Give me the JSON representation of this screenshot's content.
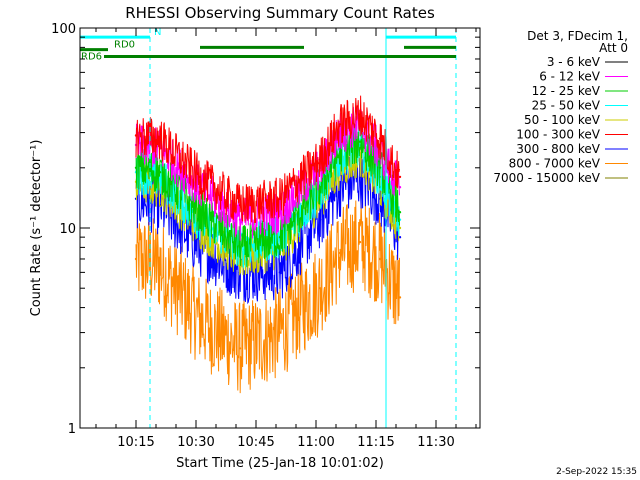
{
  "chart_data": {
    "type": "line",
    "title": "RHESSI Observing Summary Count Rates",
    "xlabel": "Start Time (25-Jan-18 10:01:02)",
    "ylabel": "Count Rate (s⁻¹ detector⁻¹)",
    "y_scale": "log",
    "xlim": [
      0,
      100
    ],
    "ylim": [
      1,
      100
    ],
    "x_units": "minutes after 10:01:02",
    "x_ticks": [
      {
        "pos": 14,
        "label": "10:15"
      },
      {
        "pos": 29,
        "label": "10:30"
      },
      {
        "pos": 44,
        "label": "10:45"
      },
      {
        "pos": 59,
        "label": "11:00"
      },
      {
        "pos": 74,
        "label": "11:15"
      },
      {
        "pos": 89,
        "label": "11:30"
      }
    ],
    "y_ticks": [
      {
        "value": 1,
        "label": "1"
      },
      {
        "value": 10,
        "label": "10"
      },
      {
        "value": 100,
        "label": "100"
      }
    ],
    "legend_header": [
      "Det 3, FDecim 1,",
      "Att 0"
    ],
    "legend_position": "right",
    "series": [
      {
        "name": "3 - 6 keV",
        "color": "#000000",
        "x": [
          14,
          20,
          30,
          40,
          50,
          60,
          65,
          70,
          75,
          80
        ],
        "values": [
          0,
          0,
          0,
          0,
          0,
          0,
          0,
          0,
          0,
          0
        ]
      },
      {
        "name": "6 - 12 keV",
        "color": "#ff00ff",
        "x": [
          14,
          20,
          30,
          40,
          50,
          60,
          65,
          70,
          75,
          80
        ],
        "values": [
          26,
          25,
          16,
          11,
          12,
          20,
          30,
          33,
          24,
          16
        ]
      },
      {
        "name": "12 - 25 keV",
        "color": "#00cc00",
        "x": [
          14,
          20,
          30,
          40,
          50,
          60,
          65,
          70,
          75,
          80
        ],
        "values": [
          20,
          19,
          12,
          8,
          9,
          16,
          24,
          27,
          20,
          12
        ]
      },
      {
        "name": "25 - 50 keV",
        "color": "#00ffff",
        "x": [
          14,
          20,
          30,
          40,
          50,
          60,
          65,
          70,
          75,
          80
        ],
        "values": [
          19,
          18,
          11,
          8,
          9,
          15,
          23,
          26,
          18,
          11
        ]
      },
      {
        "name": "50 - 100 keV",
        "color": "#cccc00",
        "x": [
          14,
          20,
          30,
          40,
          50,
          60,
          65,
          70,
          75,
          80
        ],
        "values": [
          17,
          16,
          10,
          7,
          8,
          14,
          20,
          23,
          16,
          10
        ]
      },
      {
        "name": "100 - 300 keV",
        "color": "#ff0000",
        "x": [
          14,
          20,
          30,
          40,
          50,
          60,
          65,
          70,
          75,
          80
        ],
        "values": [
          29,
          28,
          18,
          13,
          14,
          22,
          33,
          37,
          28,
          18
        ]
      },
      {
        "name": "300 - 800 keV",
        "color": "#0000ff",
        "x": [
          14,
          20,
          30,
          40,
          50,
          60,
          65,
          70,
          75,
          80
        ],
        "values": [
          14,
          13,
          8,
          6,
          6,
          11,
          16,
          18,
          14,
          9
        ]
      },
      {
        "name": "800 - 7000 keV",
        "color": "#ff8800",
        "x": [
          14,
          20,
          30,
          40,
          50,
          60,
          65,
          70,
          75,
          80
        ],
        "values": [
          7,
          6.5,
          3.5,
          2.5,
          3,
          5,
          7.5,
          8.5,
          7,
          4.5
        ]
      },
      {
        "name": "7000 - 15000 keV",
        "color": "#808000",
        "x": [
          14,
          20,
          30,
          40,
          50,
          60,
          65,
          70,
          75,
          80
        ],
        "values": [
          0,
          0,
          0,
          0,
          0,
          0,
          0,
          0,
          0,
          0
        ]
      }
    ],
    "annotations": [
      {
        "label": "N",
        "color": "#00ffff",
        "segments": [
          [
            0,
            17.5
          ],
          [
            76.5,
            94
          ]
        ],
        "level": 90
      },
      {
        "label": "RD0",
        "color": "#008000",
        "segments": [
          [
            0,
            7
          ]
        ],
        "level": 78
      },
      {
        "label": "RD6",
        "color": "#008000",
        "segments": [
          [
            6,
            30
          ],
          [
            30,
            56
          ],
          [
            56,
            81
          ],
          [
            81,
            94
          ]
        ],
        "level": 72
      },
      {
        "label": "",
        "color": "#008000",
        "segments": [
          [
            30,
            56
          ],
          [
            81,
            94
          ]
        ],
        "level": 80
      }
    ],
    "vlines": [
      {
        "x": 17.5,
        "color": "#00ffff",
        "style": "dashed"
      },
      {
        "x": 76.5,
        "color": "#00ffff",
        "style": "solid"
      },
      {
        "x": 94,
        "color": "#00ffff",
        "style": "dashed"
      }
    ],
    "date_stamp": "2-Sep-2022 15:35"
  }
}
